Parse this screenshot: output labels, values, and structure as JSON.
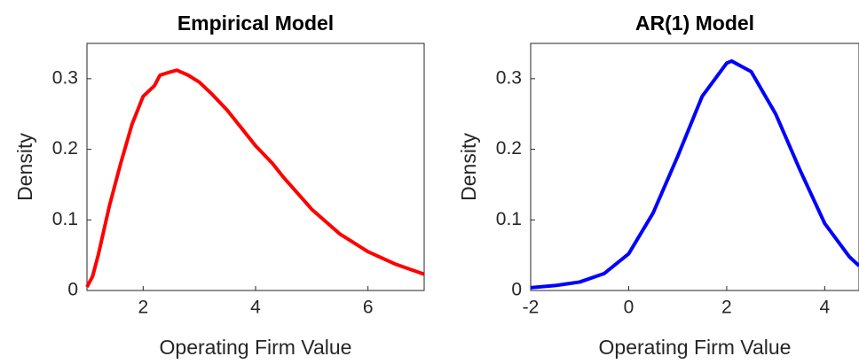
{
  "chart_data": [
    {
      "type": "line",
      "title": "Empirical Model",
      "xlabel": "Operating Firm Value",
      "ylabel": "Density",
      "x": [
        1,
        1.1,
        1.2,
        1.4,
        1.6,
        1.8,
        2.0,
        2.2,
        2.3,
        2.5,
        2.6,
        2.8,
        3.0,
        3.2,
        3.5,
        4.0,
        4.3,
        4.5,
        5.0,
        5.5,
        6.0,
        6.5,
        7.0
      ],
      "series": [
        {
          "color": "#ff0000",
          "values": [
            0.005,
            0.02,
            0.05,
            0.12,
            0.18,
            0.235,
            0.275,
            0.29,
            0.305,
            0.31,
            0.312,
            0.305,
            0.295,
            0.28,
            0.255,
            0.205,
            0.18,
            0.16,
            0.115,
            0.08,
            0.055,
            0.037,
            0.023
          ]
        }
      ],
      "xlim": [
        1,
        7
      ],
      "xticks": [
        2,
        4,
        6
      ],
      "ylim": [
        0,
        0.35
      ],
      "yticks": [
        0,
        0.1,
        0.2,
        0.3
      ],
      "grid": false
    },
    {
      "type": "line",
      "title": "AR(1) Model",
      "xlabel": "Operating Firm Value",
      "ylabel": "Density",
      "x": [
        -2,
        -1.5,
        -1,
        -0.5,
        0,
        0.5,
        1,
        1.5,
        2,
        2.1,
        2.5,
        3,
        3.5,
        4,
        4.5,
        4.7
      ],
      "series": [
        {
          "color": "#0000ff",
          "values": [
            0.004,
            0.007,
            0.012,
            0.024,
            0.052,
            0.11,
            0.19,
            0.275,
            0.322,
            0.325,
            0.31,
            0.25,
            0.17,
            0.095,
            0.048,
            0.035
          ]
        }
      ],
      "xlim": [
        -2,
        4.7
      ],
      "xticks": [
        -2,
        0,
        2,
        4
      ],
      "ylim": [
        0,
        0.35
      ],
      "yticks": [
        0,
        0.1,
        0.2,
        0.3
      ],
      "grid": false
    }
  ]
}
